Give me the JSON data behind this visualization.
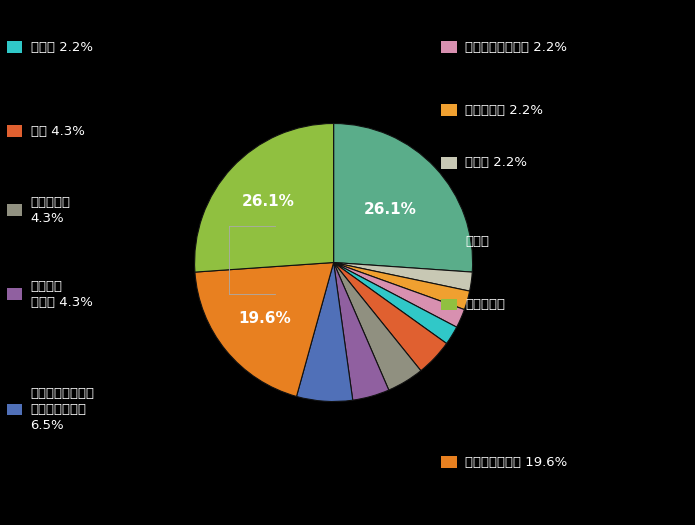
{
  "ordered_labels": [
    "製造業",
    "その他",
    "医療・福祉",
    "教育・学習支援業",
    "建設業",
    "公務",
    "サービス業",
    "金融業・保険業",
    "学術研究・専門・技術サービス業",
    "卸売業・小売業",
    "情報通信業"
  ],
  "ordered_values": [
    26.1,
    2.2,
    2.2,
    2.2,
    2.2,
    4.3,
    4.3,
    4.3,
    6.5,
    19.6,
    26.1
  ],
  "ordered_colors": [
    "#5aad8a",
    "#c8c8b4",
    "#f0a030",
    "#d890b0",
    "#30c8c8",
    "#e06030",
    "#909080",
    "#9060a0",
    "#5070b8",
    "#e88020",
    "#90c040"
  ],
  "background_color": "#000000",
  "text_color": "#ffffff",
  "left_legends": [
    {
      "label": "建設業 2.2%",
      "color": "#30c8c8",
      "lines": [
        "建設業 2.2%"
      ]
    },
    {
      "label": "公務 4.3%",
      "color": "#e06030",
      "lines": [
        "公務 4.3%"
      ]
    },
    {
      "label": "サービス業\n4.3%",
      "color": "#909080",
      "lines": [
        "サービス業",
        "4.3%"
      ]
    },
    {
      "label": "金融業・\n保険業 4.3%",
      "color": "#9060a0",
      "lines": [
        "金融業・",
        "保険業 4.3%"
      ]
    },
    {
      "label": "学術研究・専門・\n技術サービス業\n6.5%",
      "color": "#5070b8",
      "lines": [
        "学術研究・専門・",
        "技術サービス業",
        "6.5%"
      ]
    }
  ],
  "right_legends": [
    {
      "label": "教育・学習支援業 2.2%",
      "color": "#d890b0",
      "lines": [
        "教育・学習支援業 2.2%"
      ]
    },
    {
      "label": "医療・福祉 2.2%",
      "color": "#f0a030",
      "lines": [
        "医療・福祉 2.2%"
      ]
    },
    {
      "label": "その他 2.2%",
      "color": "#c8c8b4",
      "lines": [
        "その他 2.2%"
      ]
    },
    {
      "label": "製造業",
      "color": "#5aad8a",
      "lines": [
        "製造業"
      ]
    },
    {
      "label": "情報通信業",
      "color": "#90c040",
      "lines": [
        "情報通信業"
      ]
    },
    {
      "label": "卸売業・小売業 19.6%",
      "color": "#e88020",
      "lines": [
        "卸売業・小売業 19.6%"
      ]
    }
  ],
  "pct_labels": [
    {
      "idx": 0,
      "value": "26.1%",
      "r": 0.58
    },
    {
      "idx": 10,
      "value": "26.1%",
      "r": 0.62
    }
  ]
}
